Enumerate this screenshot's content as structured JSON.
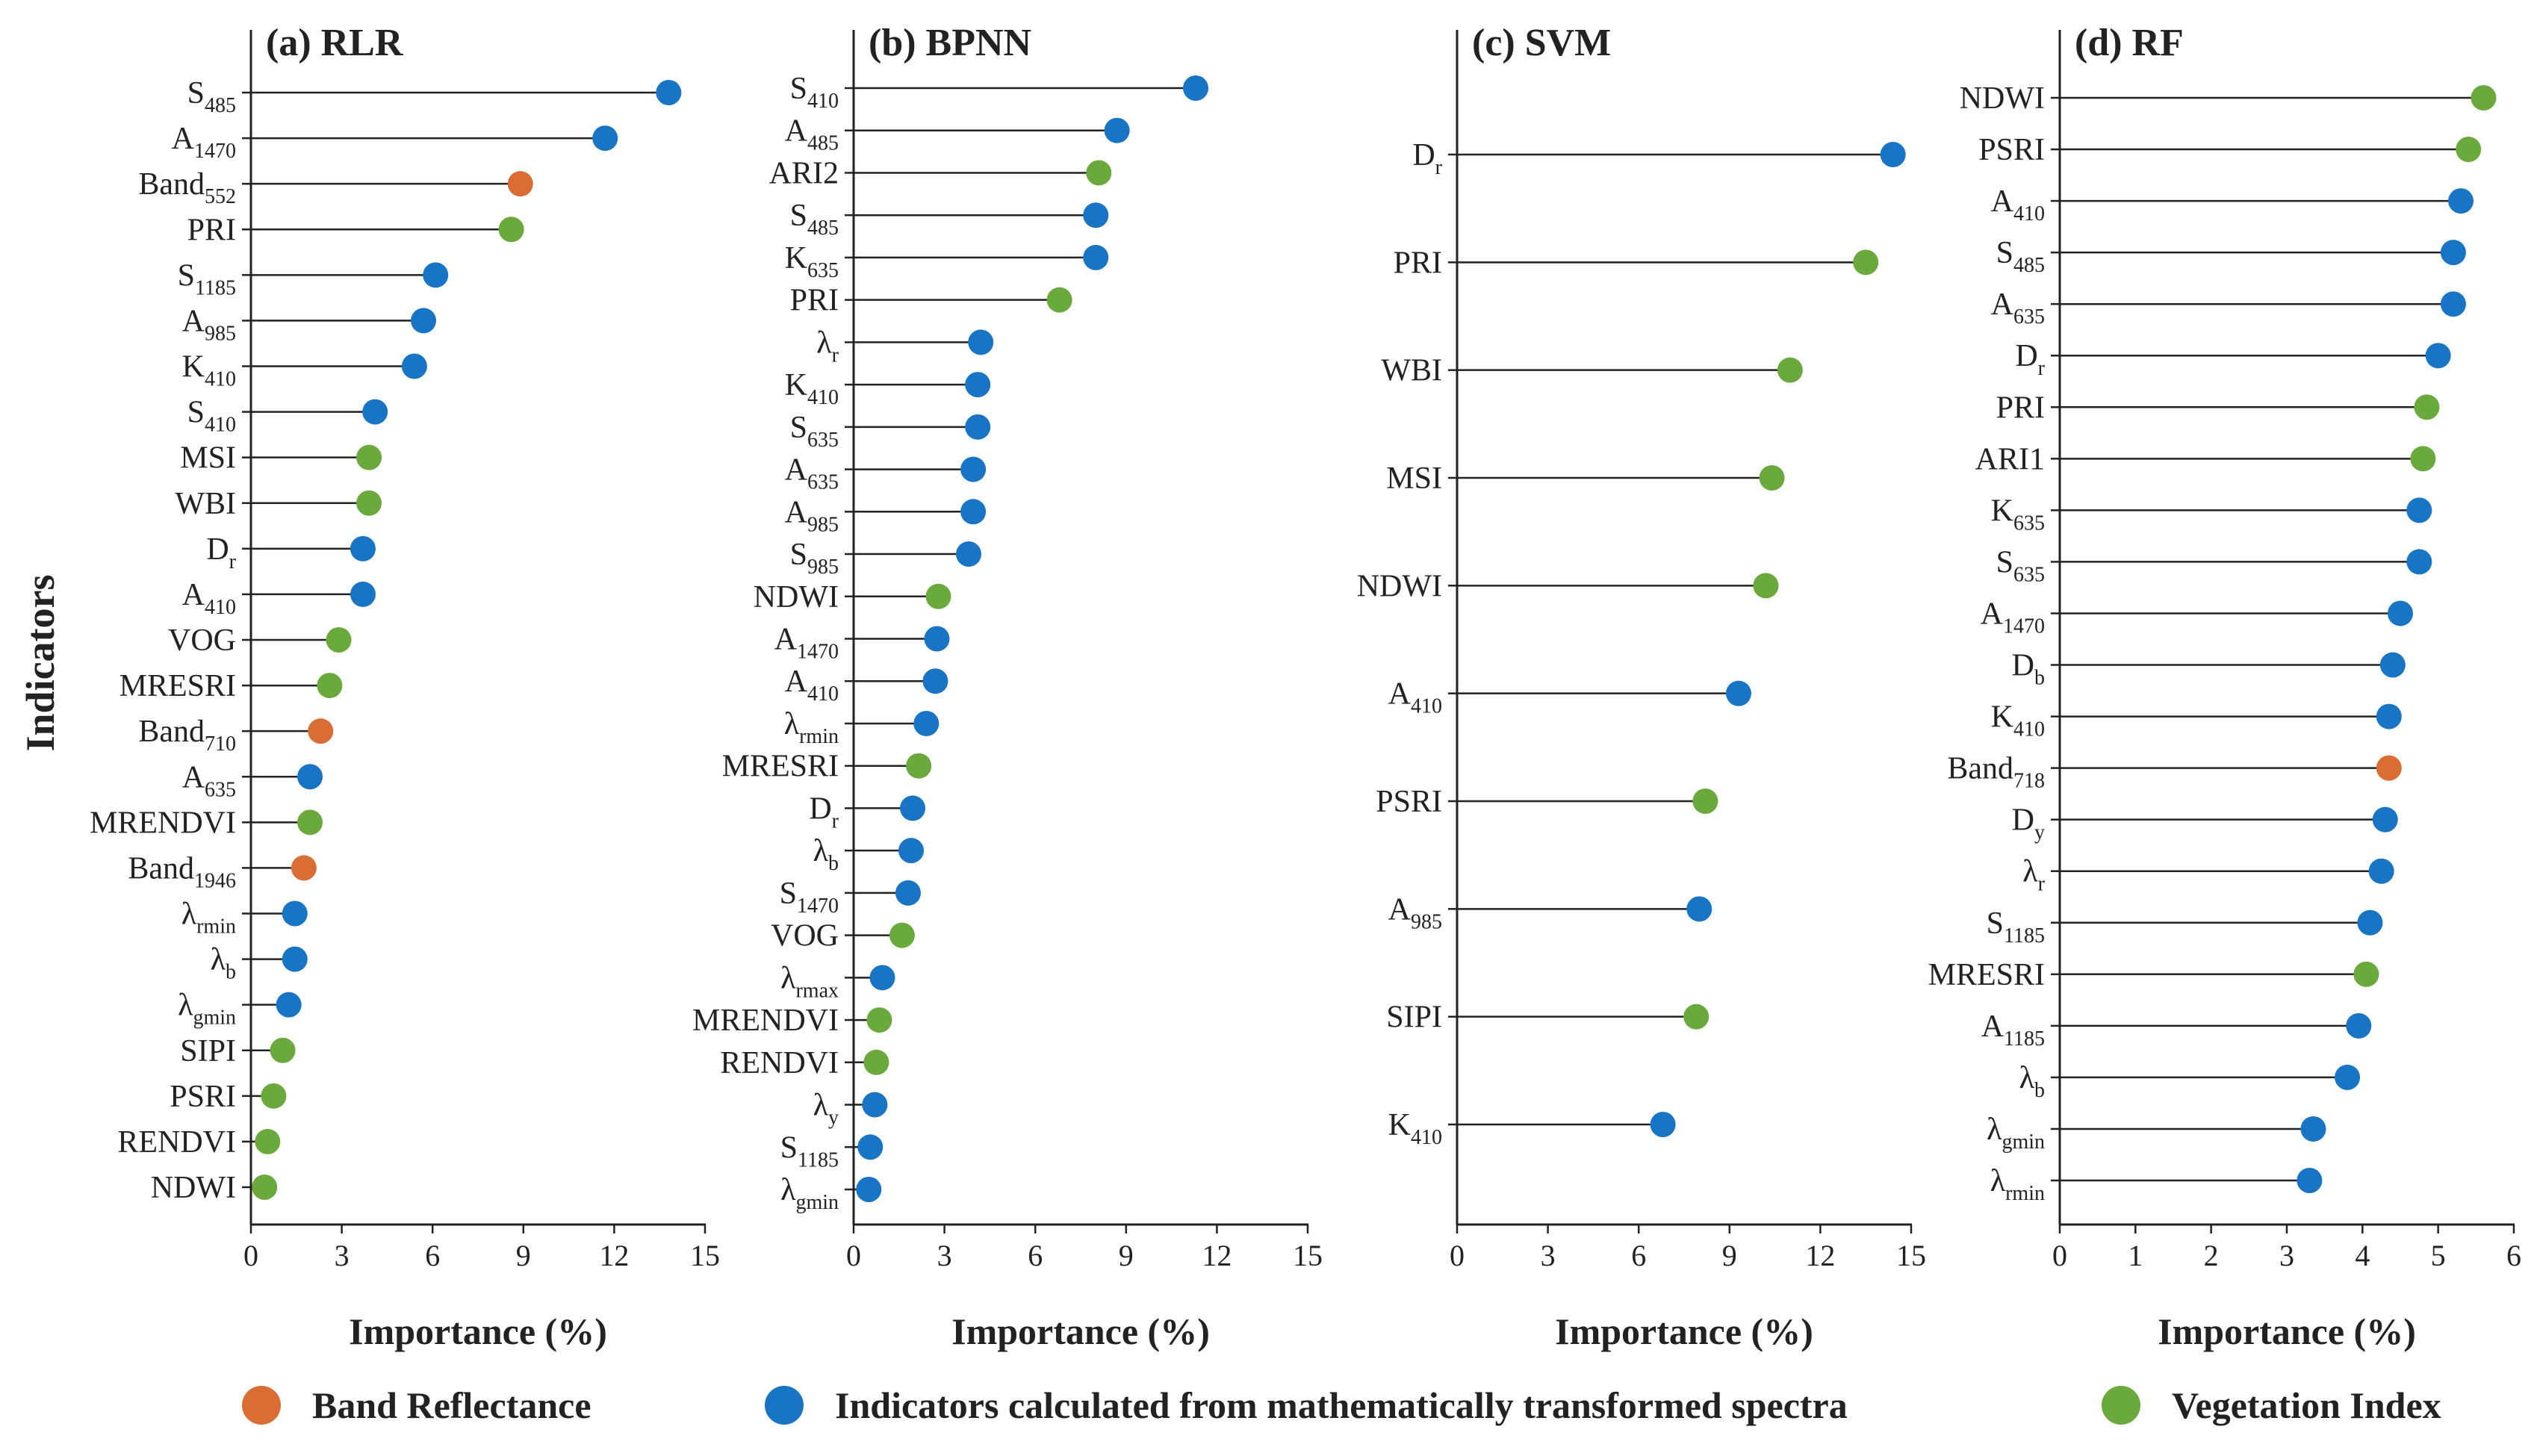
{
  "figure": {
    "ylabel": "Indicators",
    "legend": [
      {
        "label": "Band Reflectance",
        "category": "band",
        "color": "#d96d33"
      },
      {
        "label": "Indicators calculated from mathematically transformed spectra",
        "category": "trans",
        "color": "#1874c4"
      },
      {
        "label": "Vegetation Index",
        "category": "vi",
        "color": "#6aaa3c"
      }
    ]
  },
  "chart_data": [
    {
      "type": "lollipop",
      "title": "(a) RLR",
      "xlabel": "Importance (%)",
      "xlim": [
        0,
        15
      ],
      "xticks": [
        0,
        3,
        6,
        9,
        12,
        15
      ],
      "items": [
        {
          "label": "S",
          "sub": "485",
          "value": 13.8,
          "category": "trans"
        },
        {
          "label": "A",
          "sub": "1470",
          "value": 11.7,
          "category": "trans"
        },
        {
          "label": "Band",
          "sub": "552",
          "value": 8.9,
          "category": "band"
        },
        {
          "label": "PRI",
          "sub": "",
          "value": 8.6,
          "category": "vi"
        },
        {
          "label": "S",
          "sub": "1185",
          "value": 6.1,
          "category": "trans"
        },
        {
          "label": "A",
          "sub": "985",
          "value": 5.7,
          "category": "trans"
        },
        {
          "label": "K",
          "sub": "410",
          "value": 5.4,
          "category": "trans"
        },
        {
          "label": "S",
          "sub": "410",
          "value": 4.1,
          "category": "trans"
        },
        {
          "label": "MSI",
          "sub": "",
          "value": 3.9,
          "category": "vi"
        },
        {
          "label": "WBI",
          "sub": "",
          "value": 3.9,
          "category": "vi"
        },
        {
          "label": "D",
          "sub": "r",
          "value": 3.7,
          "category": "trans"
        },
        {
          "label": "A",
          "sub": "410",
          "value": 3.7,
          "category": "trans"
        },
        {
          "label": "VOG",
          "sub": "",
          "value": 2.9,
          "category": "vi"
        },
        {
          "label": "MRESRI",
          "sub": "",
          "value": 2.6,
          "category": "vi"
        },
        {
          "label": "Band",
          "sub": "710",
          "value": 2.3,
          "category": "band"
        },
        {
          "label": "A",
          "sub": "635",
          "value": 1.95,
          "category": "trans"
        },
        {
          "label": "MRENDVI",
          "sub": "",
          "value": 1.95,
          "category": "vi"
        },
        {
          "label": "Band",
          "sub": "1946",
          "value": 1.75,
          "category": "band"
        },
        {
          "label": "λ",
          "sub": "rmin",
          "value": 1.45,
          "category": "trans"
        },
        {
          "label": "λ",
          "sub": "b",
          "value": 1.45,
          "category": "trans"
        },
        {
          "label": "λ",
          "sub": "gmin",
          "value": 1.25,
          "category": "trans"
        },
        {
          "label": "SIPI",
          "sub": "",
          "value": 1.05,
          "category": "vi"
        },
        {
          "label": "PSRI",
          "sub": "",
          "value": 0.75,
          "category": "vi"
        },
        {
          "label": "RENDVI",
          "sub": "",
          "value": 0.55,
          "category": "vi"
        },
        {
          "label": "NDWI",
          "sub": "",
          "value": 0.45,
          "category": "vi"
        }
      ]
    },
    {
      "type": "lollipop",
      "title": "(b) BPNN",
      "xlabel": "Importance (%)",
      "xlim": [
        0,
        15
      ],
      "xticks": [
        0,
        3,
        6,
        9,
        12,
        15
      ],
      "items": [
        {
          "label": "S",
          "sub": "410",
          "value": 11.3,
          "category": "trans"
        },
        {
          "label": "A",
          "sub": "485",
          "value": 8.7,
          "category": "trans"
        },
        {
          "label": "ARI2",
          "sub": "",
          "value": 8.1,
          "category": "vi"
        },
        {
          "label": "S",
          "sub": "485",
          "value": 8.0,
          "category": "trans"
        },
        {
          "label": "K",
          "sub": "635",
          "value": 8.0,
          "category": "trans"
        },
        {
          "label": "PRI",
          "sub": "",
          "value": 6.8,
          "category": "vi"
        },
        {
          "label": "λ",
          "sub": "r",
          "value": 4.2,
          "category": "trans"
        },
        {
          "label": "K",
          "sub": "410",
          "value": 4.1,
          "category": "trans"
        },
        {
          "label": "S",
          "sub": "635",
          "value": 4.1,
          "category": "trans"
        },
        {
          "label": "A",
          "sub": "635",
          "value": 3.95,
          "category": "trans"
        },
        {
          "label": "A",
          "sub": "985",
          "value": 3.95,
          "category": "trans"
        },
        {
          "label": "S",
          "sub": "985",
          "value": 3.8,
          "category": "trans"
        },
        {
          "label": "NDWI",
          "sub": "",
          "value": 2.8,
          "category": "vi"
        },
        {
          "label": "A",
          "sub": "1470",
          "value": 2.75,
          "category": "trans"
        },
        {
          "label": "A",
          "sub": "410",
          "value": 2.7,
          "category": "trans"
        },
        {
          "label": "λ",
          "sub": "rmin",
          "value": 2.4,
          "category": "trans"
        },
        {
          "label": "MRESRI",
          "sub": "",
          "value": 2.15,
          "category": "vi"
        },
        {
          "label": "D",
          "sub": "r",
          "value": 1.95,
          "category": "trans"
        },
        {
          "label": "λ",
          "sub": "b",
          "value": 1.9,
          "category": "trans"
        },
        {
          "label": "S",
          "sub": "1470",
          "value": 1.8,
          "category": "trans"
        },
        {
          "label": "VOG",
          "sub": "",
          "value": 1.6,
          "category": "vi"
        },
        {
          "label": "λ",
          "sub": "rmax",
          "value": 0.95,
          "category": "trans"
        },
        {
          "label": "MRENDVI",
          "sub": "",
          "value": 0.85,
          "category": "vi"
        },
        {
          "label": "RENDVI",
          "sub": "",
          "value": 0.75,
          "category": "vi"
        },
        {
          "label": "λ",
          "sub": "y",
          "value": 0.7,
          "category": "trans"
        },
        {
          "label": "S",
          "sub": "1185",
          "value": 0.55,
          "category": "trans"
        },
        {
          "label": "λ",
          "sub": "gmin",
          "value": 0.5,
          "category": "trans"
        }
      ]
    },
    {
      "type": "lollipop",
      "title": "(c) SVM",
      "xlabel": "Importance (%)",
      "xlim": [
        0,
        15
      ],
      "xticks": [
        0,
        3,
        6,
        9,
        12,
        15
      ],
      "items": [
        {
          "label": "D",
          "sub": "r",
          "value": 14.4,
          "category": "trans"
        },
        {
          "label": "PRI",
          "sub": "",
          "value": 13.5,
          "category": "vi"
        },
        {
          "label": "WBI",
          "sub": "",
          "value": 11.0,
          "category": "vi"
        },
        {
          "label": "MSI",
          "sub": "",
          "value": 10.4,
          "category": "vi"
        },
        {
          "label": "NDWI",
          "sub": "",
          "value": 10.2,
          "category": "vi"
        },
        {
          "label": "A",
          "sub": "410",
          "value": 9.3,
          "category": "trans"
        },
        {
          "label": "PSRI",
          "sub": "",
          "value": 8.2,
          "category": "vi"
        },
        {
          "label": "A",
          "sub": "985",
          "value": 8.0,
          "category": "trans"
        },
        {
          "label": "SIPI",
          "sub": "",
          "value": 7.9,
          "category": "vi"
        },
        {
          "label": "K",
          "sub": "410",
          "value": 6.8,
          "category": "trans"
        }
      ]
    },
    {
      "type": "lollipop",
      "title": "(d) RF",
      "xlabel": "Importance (%)",
      "xlim": [
        0,
        6
      ],
      "xticks": [
        0,
        1,
        2,
        3,
        4,
        5,
        6
      ],
      "items": [
        {
          "label": "NDWI",
          "sub": "",
          "value": 5.6,
          "category": "vi"
        },
        {
          "label": "PSRI",
          "sub": "",
          "value": 5.4,
          "category": "vi"
        },
        {
          "label": "A",
          "sub": "410",
          "value": 5.3,
          "category": "trans"
        },
        {
          "label": "S",
          "sub": "485",
          "value": 5.2,
          "category": "trans"
        },
        {
          "label": "A",
          "sub": "635",
          "value": 5.2,
          "category": "trans"
        },
        {
          "label": "D",
          "sub": "r",
          "value": 5.0,
          "category": "trans"
        },
        {
          "label": "PRI",
          "sub": "",
          "value": 4.85,
          "category": "vi"
        },
        {
          "label": "ARI1",
          "sub": "",
          "value": 4.8,
          "category": "vi"
        },
        {
          "label": "K",
          "sub": "635",
          "value": 4.75,
          "category": "trans"
        },
        {
          "label": "S",
          "sub": "635",
          "value": 4.75,
          "category": "trans"
        },
        {
          "label": "A",
          "sub": "1470",
          "value": 4.5,
          "category": "trans"
        },
        {
          "label": "D",
          "sub": "b",
          "value": 4.4,
          "category": "trans"
        },
        {
          "label": "K",
          "sub": "410",
          "value": 4.35,
          "category": "trans"
        },
        {
          "label": "Band",
          "sub": "718",
          "value": 4.35,
          "category": "band"
        },
        {
          "label": "D",
          "sub": "y",
          "value": 4.3,
          "category": "trans"
        },
        {
          "label": "λ",
          "sub": "r",
          "value": 4.25,
          "category": "trans"
        },
        {
          "label": "S",
          "sub": "1185",
          "value": 4.1,
          "category": "trans"
        },
        {
          "label": "MRESRI",
          "sub": "",
          "value": 4.05,
          "category": "vi"
        },
        {
          "label": "A",
          "sub": "1185",
          "value": 3.95,
          "category": "trans"
        },
        {
          "label": "λ",
          "sub": "b",
          "value": 3.8,
          "category": "trans"
        },
        {
          "label": "λ",
          "sub": "gmin",
          "value": 3.35,
          "category": "trans"
        },
        {
          "label": "λ",
          "sub": "rmin",
          "value": 3.3,
          "category": "trans"
        }
      ]
    }
  ]
}
